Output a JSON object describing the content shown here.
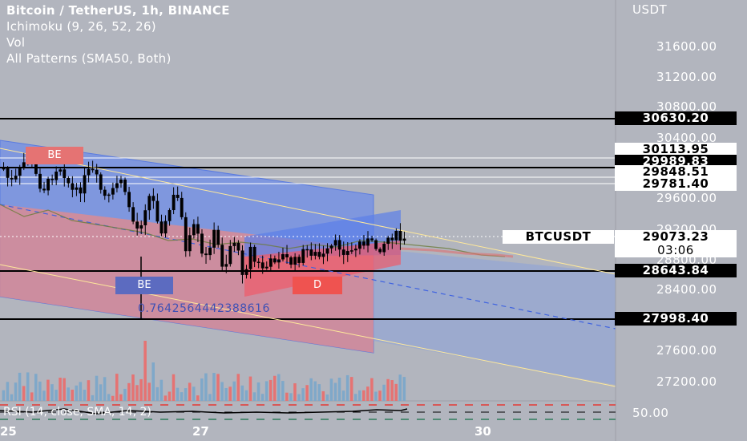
{
  "legend": {
    "title": "Bitcoin / TetherUS, 1h, BINANCE",
    "ichimoku": "Ichimoku (9, 26, 52, 26)",
    "vol": "Vol",
    "patterns": "All Patterns (SMA50, Both)"
  },
  "price_axis": {
    "currency": "USDT",
    "ticks": [
      "31600.00",
      "31200.00",
      "30800.00",
      "30400.00",
      "29600.00",
      "29200.00",
      "28800.00",
      "28400.00",
      "27600.00",
      "27200.00"
    ],
    "rsi_tick": "50.00"
  },
  "price_labels": [
    {
      "value": "30630.20",
      "style": "dark"
    },
    {
      "value": "30113.95",
      "style": "light"
    },
    {
      "value": "29989.83",
      "style": "dark"
    },
    {
      "value": "29848.51",
      "style": "light"
    },
    {
      "value": "29781.40",
      "style": "light"
    },
    {
      "value": "28643.84",
      "style": "dark"
    },
    {
      "value": "27998.40",
      "style": "dark"
    }
  ],
  "current_price": {
    "symbol": "BTCUSDT",
    "price": "29073.23",
    "countdown": "03:06"
  },
  "patterns": [
    {
      "label": "BE",
      "color": "#e57373"
    },
    {
      "label": "BE",
      "color": "#5c6bc0"
    },
    {
      "label": "D",
      "color": "#ef5350"
    }
  ],
  "fib_ratio": "0.7642564442388616",
  "rsi_label": "RSI (14, close, SMA, 14, 2)",
  "time_axis": [
    "25",
    "27",
    "30"
  ]
}
